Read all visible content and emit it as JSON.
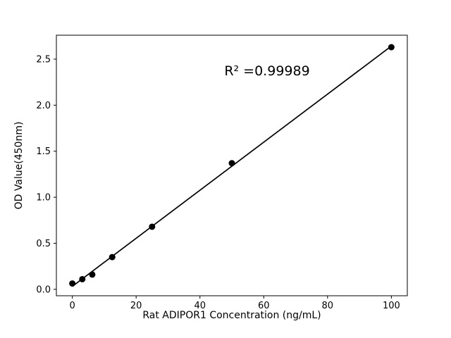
{
  "chart_data": {
    "type": "scatter",
    "title": "",
    "xlabel": "Rat ADIPOR1 Concentration (ng/mL)",
    "ylabel": "OD Value(450nm)",
    "x": [
      0,
      3.125,
      6.25,
      12.5,
      25,
      50,
      100
    ],
    "y": [
      0.063,
      0.11,
      0.16,
      0.35,
      0.68,
      1.37,
      2.63
    ],
    "xticks": [
      0,
      20,
      40,
      60,
      80,
      100
    ],
    "yticks": [
      0.0,
      0.5,
      1.0,
      1.5,
      2.0,
      2.5
    ],
    "ytick_labels": [
      "0.0",
      "0.5",
      "1.0",
      "1.5",
      "2.0",
      "2.5"
    ],
    "xlim": [
      -5,
      105
    ],
    "ylim": [
      -0.07,
      2.76
    ],
    "grid": false,
    "legend": "none",
    "line_color": "#000000",
    "marker_color": "#000000",
    "fit": "linear",
    "annotation": {
      "text": "R² =0.99989"
    }
  }
}
